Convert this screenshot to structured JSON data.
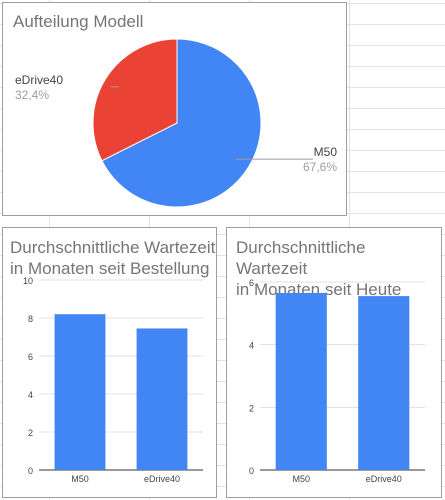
{
  "colors": {
    "m50": "#4285f4",
    "edrive40": "#ea4335",
    "grid": "#e0e0e0",
    "text": "#757575",
    "tick": "#444444"
  },
  "chart_data": [
    {
      "type": "pie",
      "title": "Aufteilung Modell",
      "slices": [
        {
          "label": "M50",
          "value": 67.6,
          "display": "67,6%",
          "color": "#4285f4"
        },
        {
          "label": "eDrive40",
          "value": 32.4,
          "display": "32,4%",
          "color": "#ea4335"
        }
      ],
      "legend": "none"
    },
    {
      "type": "bar",
      "title": "Durchschnittliche Wartezeit\nin Monaten seit Bestellung",
      "categories": [
        "M50",
        "eDrive40"
      ],
      "values": [
        8.2,
        7.45
      ],
      "ylim": [
        0,
        10
      ],
      "yticks": [
        "0",
        "2",
        "4",
        "6",
        "8",
        "10"
      ],
      "grid": true,
      "color": "#4285f4"
    },
    {
      "type": "bar",
      "title": "Durchschnittliche Wartezeit\nin Monaten seit Heute",
      "categories": [
        "M50",
        "eDrive40"
      ],
      "values": [
        5.65,
        5.55
      ],
      "ylim": [
        0,
        6
      ],
      "yticks": [
        "0",
        "2",
        "4",
        "6"
      ],
      "grid": true,
      "color": "#4285f4"
    }
  ]
}
